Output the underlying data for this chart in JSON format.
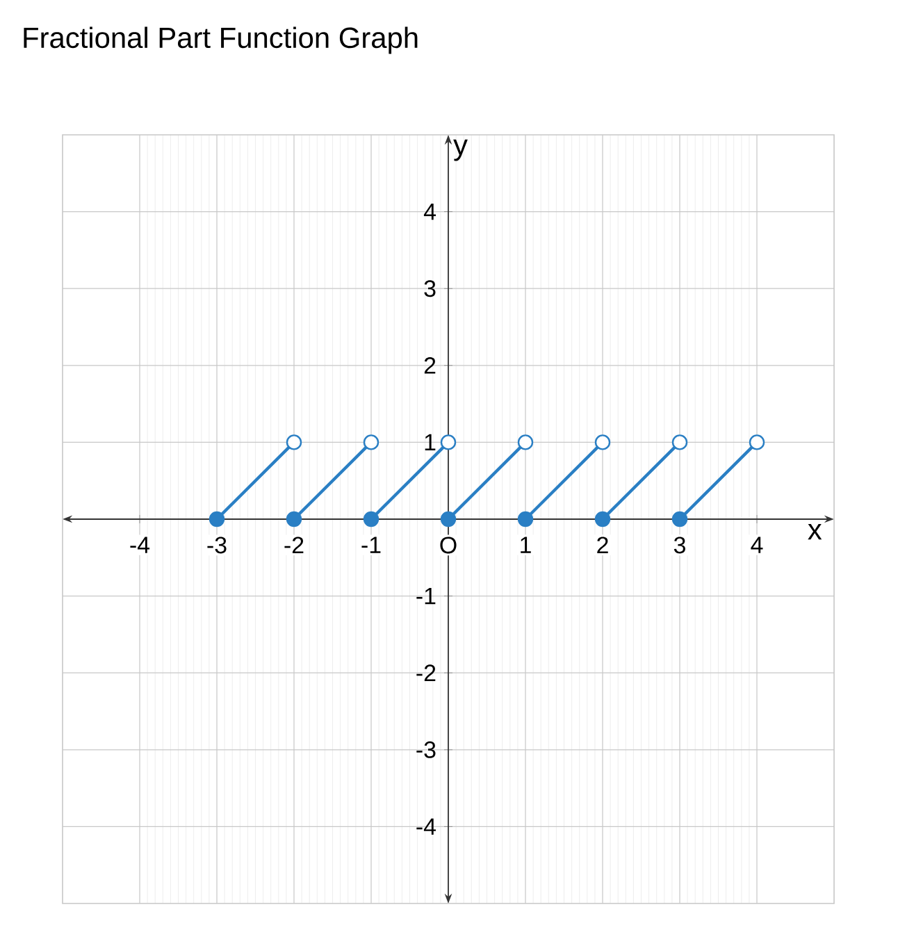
{
  "chart_data": {
    "type": "line",
    "title": "Fractional Part Function Graph",
    "xlabel": "x",
    "ylabel": "y",
    "xlim": [
      -5,
      5
    ],
    "ylim": [
      -5,
      5
    ],
    "xticks": [
      -4,
      -3,
      -2,
      -1,
      {
        "value": 0,
        "label": "O"
      },
      1,
      2,
      3,
      4
    ],
    "yticks": [
      -4,
      -3,
      -2,
      -1,
      1,
      2,
      3,
      4
    ],
    "grid": true,
    "series": [
      {
        "color": "#2a7fc4",
        "x": [
          -3,
          -2,
          null,
          -2,
          -1,
          null,
          -1,
          0,
          null,
          0,
          1,
          null,
          1,
          2,
          null,
          2,
          3,
          null,
          3,
          4
        ],
        "values": [
          0,
          1,
          null,
          0,
          1,
          null,
          0,
          1,
          null,
          0,
          1,
          null,
          0,
          1,
          null,
          0,
          1,
          null,
          0,
          1
        ]
      },
      {
        "type": "scatter",
        "marker": "circle",
        "color": "#2a7fc4",
        "x": [
          -3,
          -2,
          -1,
          0,
          1,
          2,
          3
        ],
        "values": [
          0,
          0,
          0,
          0,
          0,
          0,
          0
        ]
      },
      {
        "type": "scatter",
        "marker": "circle",
        "color": "#ffffff",
        "x": [
          -2,
          -1,
          0,
          1,
          2,
          3,
          4
        ],
        "values": [
          1,
          1,
          1,
          1,
          1,
          1,
          1
        ]
      }
    ]
  }
}
